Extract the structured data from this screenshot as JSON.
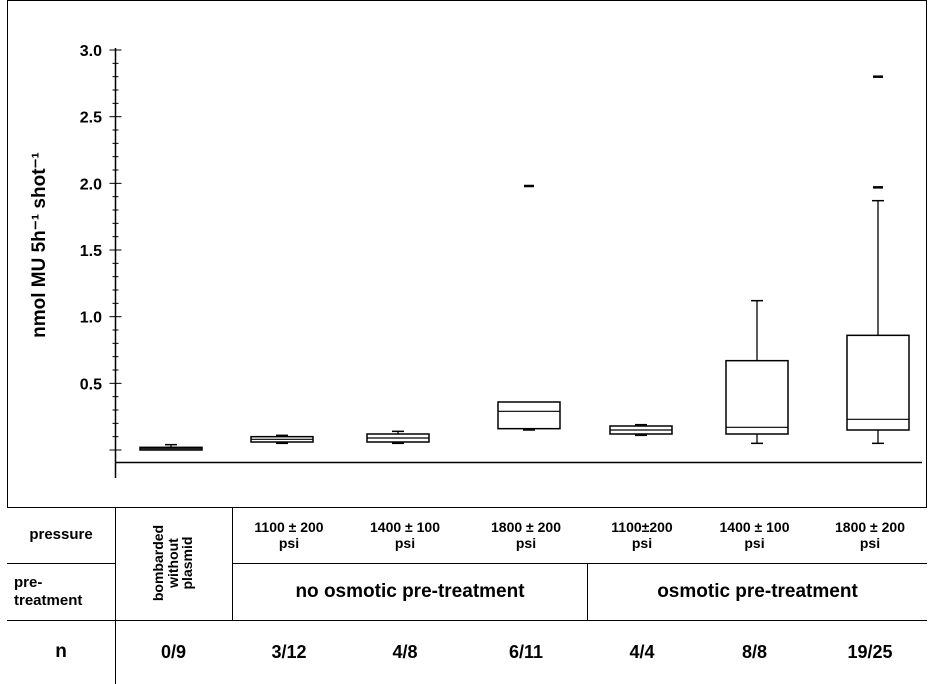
{
  "chart_data": {
    "type": "box",
    "ylabel": "nmol MU 5h⁻¹ shot⁻¹",
    "ylim": [
      -0.1,
      3.0
    ],
    "yticks": [
      "0.5",
      "1.0",
      "1.5",
      "2.0",
      "2.5",
      "3.0"
    ],
    "boxes": [
      {
        "whisker_low": 0.0,
        "q1": 0.0,
        "median": 0.01,
        "q3": 0.02,
        "whisker_high": 0.04,
        "outliers": []
      },
      {
        "whisker_low": 0.05,
        "q1": 0.06,
        "median": 0.08,
        "q3": 0.1,
        "whisker_high": 0.11,
        "outliers": []
      },
      {
        "whisker_low": 0.05,
        "q1": 0.06,
        "median": 0.09,
        "q3": 0.12,
        "whisker_high": 0.14,
        "outliers": []
      },
      {
        "whisker_low": 0.15,
        "q1": 0.16,
        "median": 0.29,
        "q3": 0.36,
        "whisker_high": 0.36,
        "outliers": [
          1.98
        ]
      },
      {
        "whisker_low": 0.11,
        "q1": 0.12,
        "median": 0.15,
        "q3": 0.18,
        "whisker_high": 0.19,
        "outliers": []
      },
      {
        "whisker_low": 0.05,
        "q1": 0.12,
        "median": 0.17,
        "q3": 0.67,
        "whisker_high": 1.12,
        "outliers": []
      },
      {
        "whisker_low": 0.05,
        "q1": 0.15,
        "median": 0.23,
        "q3": 0.86,
        "whisker_high": 1.87,
        "outliers": [
          1.97,
          2.8
        ]
      }
    ]
  },
  "table": {
    "row_labels": {
      "pressure": "pressure",
      "pretreatment": "pre-\ntreatment",
      "n": "n"
    },
    "control_label": "bombarded\nwithout\nplasmid",
    "pressures": [
      "1100 ± 200\npsi",
      "1400 ± 100\npsi",
      "1800 ± 200\npsi",
      "1100±200\npsi",
      "1400 ± 100\npsi",
      "1800 ± 200\npsi"
    ],
    "groups": [
      "no osmotic pre-treatment",
      "osmotic pre-treatment"
    ],
    "n_values": [
      "0/9",
      "3/12",
      "4/8",
      "6/11",
      "4/4",
      "8/8",
      "19/25"
    ]
  }
}
